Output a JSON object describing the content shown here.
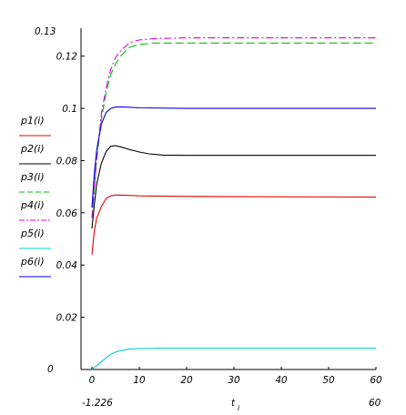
{
  "chart_data": {
    "type": "line",
    "x_range": [
      0,
      60
    ],
    "y_range": [
      0,
      0.13
    ],
    "x_ticks": [
      {
        "value": 0,
        "label": "0"
      },
      {
        "value": 10,
        "label": "10"
      },
      {
        "value": 20,
        "label": "20"
      },
      {
        "value": 30,
        "label": "30"
      },
      {
        "value": 40,
        "label": "40"
      },
      {
        "value": 50,
        "label": "50"
      },
      {
        "value": 60,
        "label": "60"
      }
    ],
    "y_ticks": [
      {
        "value": 0.02,
        "label": "0.02"
      },
      {
        "value": 0.04,
        "label": "0.04"
      },
      {
        "value": 0.06,
        "label": "0.06"
      },
      {
        "value": 0.08,
        "label": "0.08"
      },
      {
        "value": 0.1,
        "label": "0.1"
      },
      {
        "value": 0.12,
        "label": "0.12"
      }
    ],
    "y_top_label": "0.13",
    "y_bottom_label": "0",
    "x_min_label": "-1.226",
    "x_max_label": "60",
    "x_axis_title": "t",
    "x_axis_subscript": "i",
    "series": [
      {
        "name": "p1(i)",
        "color": "#e00000",
        "dash": "solid",
        "points": [
          [
            0,
            0.044
          ],
          [
            0.5,
            0.053
          ],
          [
            1,
            0.058
          ],
          [
            2,
            0.0625
          ],
          [
            3,
            0.0655
          ],
          [
            4,
            0.0665
          ],
          [
            5,
            0.0668
          ],
          [
            7,
            0.0667
          ],
          [
            10,
            0.0665
          ],
          [
            20,
            0.0663
          ],
          [
            30,
            0.0662
          ],
          [
            60,
            0.066
          ]
        ]
      },
      {
        "name": "p2(i)",
        "color": "#000000",
        "dash": "solid",
        "points": [
          [
            0,
            0.054
          ],
          [
            0.5,
            0.063
          ],
          [
            1,
            0.071
          ],
          [
            2,
            0.079
          ],
          [
            3,
            0.0835
          ],
          [
            4,
            0.0855
          ],
          [
            5,
            0.0857
          ],
          [
            6,
            0.0853
          ],
          [
            8,
            0.0842
          ],
          [
            10,
            0.0833
          ],
          [
            12,
            0.0826
          ],
          [
            15,
            0.0821
          ],
          [
            20,
            0.082
          ],
          [
            60,
            0.082
          ]
        ]
      },
      {
        "name": "p3(i)",
        "color": "#00c000",
        "dash": "dashed",
        "points": [
          [
            0,
            0.058
          ],
          [
            1,
            0.08
          ],
          [
            2,
            0.096
          ],
          [
            3,
            0.106
          ],
          [
            4,
            0.113
          ],
          [
            5,
            0.117
          ],
          [
            6,
            0.12
          ],
          [
            8,
            0.1235
          ],
          [
            10,
            0.1245
          ],
          [
            13,
            0.125
          ],
          [
            20,
            0.125
          ],
          [
            60,
            0.125
          ]
        ]
      },
      {
        "name": "p4(i)",
        "color": "#e000e0",
        "dash": "dashdot",
        "points": [
          [
            0,
            0.058
          ],
          [
            1,
            0.081
          ],
          [
            2,
            0.098
          ],
          [
            3,
            0.108
          ],
          [
            4,
            0.115
          ],
          [
            5,
            0.1195
          ],
          [
            6,
            0.122
          ],
          [
            8,
            0.1252
          ],
          [
            10,
            0.1262
          ],
          [
            13,
            0.1267
          ],
          [
            20,
            0.127
          ],
          [
            60,
            0.127
          ]
        ]
      },
      {
        "name": "p5(i)",
        "color": "#00d0d0",
        "dash": "solid",
        "points": [
          [
            0,
            0
          ],
          [
            1,
            0.0015
          ],
          [
            2,
            0.003
          ],
          [
            3,
            0.0045
          ],
          [
            4,
            0.0058
          ],
          [
            5,
            0.0067
          ],
          [
            6,
            0.0072
          ],
          [
            8,
            0.0078
          ],
          [
            10,
            0.008
          ],
          [
            14,
            0.0082
          ],
          [
            20,
            0.0082
          ],
          [
            60,
            0.0082
          ]
        ]
      },
      {
        "name": "p6(i)",
        "color": "#0000e0",
        "dash": "solid",
        "points": [
          [
            0,
            0.062
          ],
          [
            0.5,
            0.075
          ],
          [
            1,
            0.084
          ],
          [
            2,
            0.094
          ],
          [
            3,
            0.0985
          ],
          [
            4,
            0.1
          ],
          [
            5,
            0.1005
          ],
          [
            7,
            0.1005
          ],
          [
            10,
            0.1002
          ],
          [
            20,
            0.1
          ],
          [
            60,
            0.1
          ]
        ]
      }
    ]
  }
}
